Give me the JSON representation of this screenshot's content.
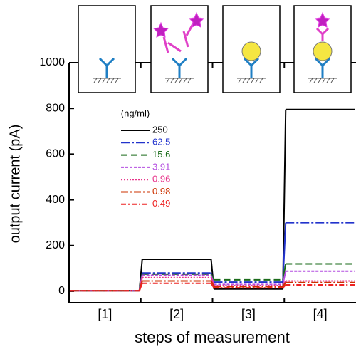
{
  "chart_data": {
    "type": "line",
    "ylabel": "output current (pA)",
    "xlabel": "steps of measurement",
    "legend_title": "(ng/ml)",
    "categories": [
      "[1]",
      "[2]",
      "[3]",
      "[4]"
    ],
    "series": [
      {
        "name": "250",
        "color": "#000000",
        "values": [
          2,
          140,
          10,
          795
        ]
      },
      {
        "name": "62.5",
        "color": "#2233cc",
        "values": [
          2,
          80,
          40,
          300
        ]
      },
      {
        "name": "15.6",
        "color": "#1a6b1a",
        "values": [
          2,
          75,
          50,
          120
        ]
      },
      {
        "name": "3.91",
        "color": "#b44fe0",
        "values": [
          2,
          70,
          30,
          88
        ]
      },
      {
        "name": "0.96",
        "color": "#e8338a",
        "values": [
          2,
          60,
          25,
          45
        ]
      },
      {
        "name": "0.98",
        "color": "#cc3300",
        "values": [
          2,
          45,
          20,
          38
        ]
      },
      {
        "name": "0.49",
        "color": "#ee2222",
        "values": [
          2,
          35,
          15,
          28
        ]
      }
    ],
    "ylim": [
      -50,
      1000
    ],
    "yticks": [
      0,
      200,
      400,
      600,
      800,
      1000
    ]
  }
}
